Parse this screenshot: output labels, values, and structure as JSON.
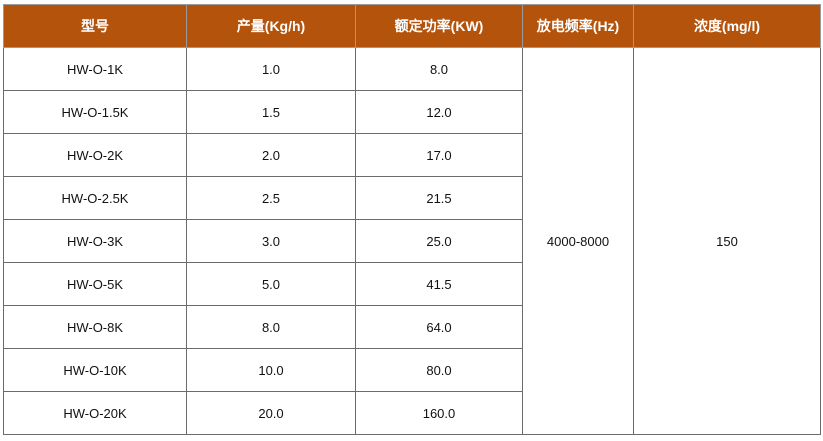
{
  "table": {
    "headers": [
      "型号",
      "产量(Kg/h)",
      "额定功率(KW)",
      "放电频率(Hz)",
      "浓度(mg/l)"
    ],
    "rows": [
      [
        "HW-O-1K",
        "1.0",
        "8.0"
      ],
      [
        "HW-O-1.5K",
        "1.5",
        "12.0"
      ],
      [
        "HW-O-2K",
        "2.0",
        "17.0"
      ],
      [
        "HW-O-2.5K",
        "2.5",
        "21.5"
      ],
      [
        "HW-O-3K",
        "3.0",
        "25.0"
      ],
      [
        "HW-O-5K",
        "5.0",
        "41.5"
      ],
      [
        "HW-O-8K",
        "8.0",
        "64.0"
      ],
      [
        "HW-O-10K",
        "10.0",
        "80.0"
      ],
      [
        "HW-O-20K",
        "20.0",
        "160.0"
      ]
    ],
    "merged": [
      "4000-8000",
      "150"
    ]
  }
}
